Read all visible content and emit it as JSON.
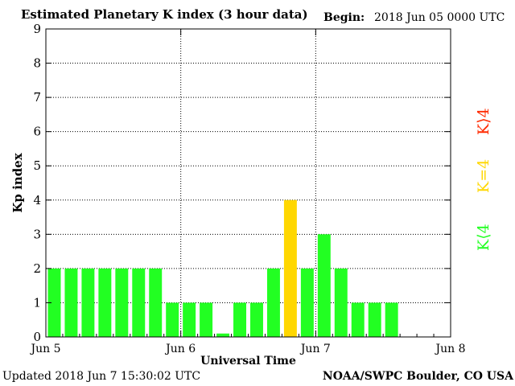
{
  "header": {
    "title": "Estimated Planetary K index (3 hour data)",
    "begin_label": "Begin:",
    "begin_value": "2018 Jun 05 0000 UTC"
  },
  "footer": {
    "updated": "Updated 2018 Jun  7 15:30:02 UTC",
    "credit": "NOAA/SWPC Boulder, CO USA"
  },
  "legend": {
    "low": "K⟨4",
    "mid": "K=4",
    "high": "K⟩4"
  },
  "colors": {
    "low": "#22ff22",
    "mid": "#ffd700",
    "high": "#ff2a00"
  },
  "chart_data": {
    "type": "bar",
    "title": "Estimated Planetary K index (3 hour data)",
    "xlabel": "Universal Time",
    "ylabel": "Kp index",
    "ylim": [
      0,
      9
    ],
    "yticks": [
      "0",
      "1",
      "2",
      "3",
      "4",
      "5",
      "6",
      "7",
      "8",
      "9"
    ],
    "xticks": [
      "Jun 5",
      "Jun 6",
      "Jun 7",
      "Jun 8"
    ],
    "days": 3,
    "bins_per_day": 8,
    "grid": true,
    "values": [
      2,
      2,
      2,
      2,
      2,
      2,
      2,
      1,
      1,
      1,
      0.1,
      1,
      1,
      2,
      4,
      2,
      3,
      2,
      1,
      1,
      1
    ]
  }
}
